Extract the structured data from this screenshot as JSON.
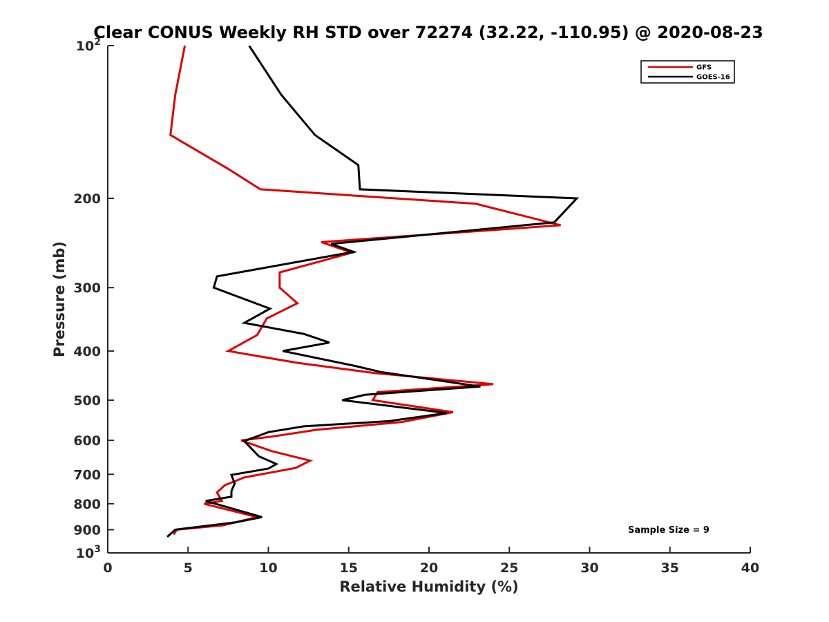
{
  "chart_data": {
    "type": "line",
    "title": "Clear CONUS Weekly RH STD over 72274 (32.22, -110.95) @ 2020-08-23",
    "xlabel": "Relative Humidity (%)",
    "ylabel": "Pressure (mb)",
    "xlim": [
      0,
      40
    ],
    "ylim": [
      100,
      1000
    ],
    "y_scale": "log",
    "y_reversed": true,
    "xticks": [
      0,
      5,
      10,
      15,
      20,
      25,
      30,
      35,
      40
    ],
    "xtick_labels": [
      "0",
      "5",
      "10",
      "15",
      "20",
      "25",
      "30",
      "35",
      "40"
    ],
    "yticks": [
      {
        "value": 100,
        "base": "10",
        "exp": "2"
      },
      {
        "value": 200,
        "label": "200"
      },
      {
        "value": 300,
        "label": "300"
      },
      {
        "value": 400,
        "label": "400"
      },
      {
        "value": 500,
        "label": "500"
      },
      {
        "value": 600,
        "label": "600"
      },
      {
        "value": 700,
        "label": "700"
      },
      {
        "value": 800,
        "label": "800"
      },
      {
        "value": 900,
        "label": "900"
      },
      {
        "value": 1000,
        "base": "10",
        "exp": "3"
      }
    ],
    "grid": false,
    "legend_position": "top-right",
    "annotation": "Sample Size = 9",
    "series": [
      {
        "name": "GFS",
        "color": "#dd0000",
        "points": [
          [
            4.8,
            100
          ],
          [
            4.2,
            125
          ],
          [
            3.9,
            150
          ],
          [
            7.5,
            175
          ],
          [
            9.5,
            192
          ],
          [
            22.9,
            205
          ],
          [
            28.2,
            226
          ],
          [
            13.3,
            244
          ],
          [
            15.2,
            256
          ],
          [
            10.7,
            280
          ],
          [
            10.7,
            300
          ],
          [
            11.8,
            322
          ],
          [
            9.9,
            345
          ],
          [
            9.3,
            372
          ],
          [
            7.5,
            400
          ],
          [
            11.8,
            422
          ],
          [
            16.6,
            442
          ],
          [
            24.0,
            465
          ],
          [
            16.8,
            482
          ],
          [
            16.5,
            500
          ],
          [
            21.5,
            528
          ],
          [
            18.3,
            552
          ],
          [
            13.0,
            572
          ],
          [
            10.2,
            590
          ],
          [
            8.3,
            600
          ],
          [
            10.2,
            630
          ],
          [
            12.6,
            658
          ],
          [
            11.7,
            680
          ],
          [
            8.5,
            710
          ],
          [
            7.3,
            735
          ],
          [
            6.8,
            760
          ],
          [
            7.0,
            780
          ],
          [
            7.1,
            790
          ],
          [
            6.0,
            800
          ],
          [
            9.3,
            850
          ],
          [
            7.2,
            882
          ],
          [
            4.3,
            900
          ],
          [
            4.1,
            920
          ]
        ]
      },
      {
        "name": "GOES-16",
        "color": "#000000",
        "points": [
          [
            8.8,
            100
          ],
          [
            10.8,
            125
          ],
          [
            12.9,
            150
          ],
          [
            15.6,
            172
          ],
          [
            15.7,
            192
          ],
          [
            29.2,
            200
          ],
          [
            27.8,
            223
          ],
          [
            13.9,
            246
          ],
          [
            15.3,
            255
          ],
          [
            6.8,
            285
          ],
          [
            6.6,
            300
          ],
          [
            10.1,
            330
          ],
          [
            8.5,
            352
          ],
          [
            12.2,
            370
          ],
          [
            13.8,
            385
          ],
          [
            10.9,
            400
          ],
          [
            15.4,
            428
          ],
          [
            17.0,
            440
          ],
          [
            23.2,
            470
          ],
          [
            16.0,
            488
          ],
          [
            14.6,
            500
          ],
          [
            21.1,
            530
          ],
          [
            17.5,
            550
          ],
          [
            12.2,
            563
          ],
          [
            10.0,
            578
          ],
          [
            8.5,
            602
          ],
          [
            9.4,
            645
          ],
          [
            10.5,
            668
          ],
          [
            10.0,
            682
          ],
          [
            7.7,
            702
          ],
          [
            7.9,
            730
          ],
          [
            7.7,
            755
          ],
          [
            7.7,
            775
          ],
          [
            6.1,
            790
          ],
          [
            9.6,
            850
          ],
          [
            8.0,
            870
          ],
          [
            4.2,
            900
          ],
          [
            3.7,
            930
          ]
        ]
      }
    ]
  }
}
